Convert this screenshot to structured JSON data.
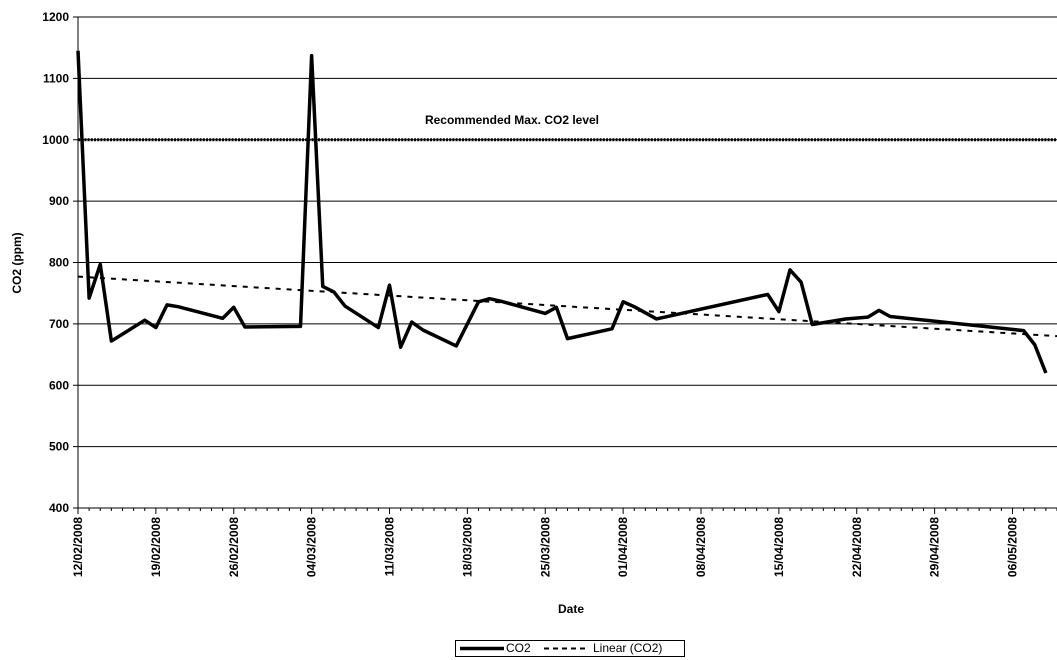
{
  "chart_data": {
    "type": "line",
    "title": "",
    "xlabel": "Date",
    "ylabel": "CO2 (ppm)",
    "ylim": [
      400,
      1200
    ],
    "yticks": [
      400,
      500,
      600,
      700,
      800,
      900,
      1000,
      1100,
      1200
    ],
    "xlim": [
      "2008-02-12",
      "2008-05-10"
    ],
    "x_tick_labels": [
      "12/02/2008",
      "19/02/2008",
      "26/02/2008",
      "04/03/2008",
      "11/03/2008",
      "18/03/2008",
      "25/03/2008",
      "01/04/2008",
      "08/04/2008",
      "15/04/2008",
      "22/04/2008",
      "29/04/2008",
      "06/05/2008"
    ],
    "grid": "horizontal",
    "legend_position": "bottom",
    "series": [
      {
        "name": "CO2",
        "style": "solid",
        "color": "#000000",
        "points": [
          [
            "2008-02-12",
            1145
          ],
          [
            "2008-02-13",
            742
          ],
          [
            "2008-02-14",
            797
          ],
          [
            "2008-02-15",
            672
          ],
          [
            "2008-02-18",
            706
          ],
          [
            "2008-02-19",
            694
          ],
          [
            "2008-02-20",
            731
          ],
          [
            "2008-02-21",
            728
          ],
          [
            "2008-02-25",
            709
          ],
          [
            "2008-02-26",
            727
          ],
          [
            "2008-02-27",
            695
          ],
          [
            "2008-03-03",
            696
          ],
          [
            "2008-03-04",
            1137
          ],
          [
            "2008-03-05",
            761
          ],
          [
            "2008-03-06",
            752
          ],
          [
            "2008-03-07",
            729
          ],
          [
            "2008-03-10",
            694
          ],
          [
            "2008-03-11",
            763
          ],
          [
            "2008-03-12",
            662
          ],
          [
            "2008-03-13",
            703
          ],
          [
            "2008-03-14",
            690
          ],
          [
            "2008-03-17",
            664
          ],
          [
            "2008-03-19",
            736
          ],
          [
            "2008-03-20",
            741
          ],
          [
            "2008-03-21",
            737
          ],
          [
            "2008-03-25",
            717
          ],
          [
            "2008-03-26",
            727
          ],
          [
            "2008-03-27",
            676
          ],
          [
            "2008-03-31",
            692
          ],
          [
            "2008-04-01",
            736
          ],
          [
            "2008-04-02",
            728
          ],
          [
            "2008-04-04",
            708
          ],
          [
            "2008-04-14",
            748
          ],
          [
            "2008-04-15",
            720
          ],
          [
            "2008-04-16",
            788
          ],
          [
            "2008-04-17",
            768
          ],
          [
            "2008-04-18",
            699
          ],
          [
            "2008-04-21",
            708
          ],
          [
            "2008-04-23",
            711
          ],
          [
            "2008-04-24",
            722
          ],
          [
            "2008-04-25",
            712
          ],
          [
            "2008-05-07",
            689
          ],
          [
            "2008-05-08",
            666
          ],
          [
            "2008-05-09",
            620
          ]
        ]
      },
      {
        "name": "Linear (CO2)",
        "style": "dashed",
        "color": "#000000",
        "points": [
          [
            "2008-02-12",
            777
          ],
          [
            "2008-05-10",
            680
          ]
        ]
      }
    ],
    "reference_line": {
      "value": 1000,
      "label": "Recommended Max. CO2 level",
      "style": "dotted"
    }
  },
  "legend": {
    "items": [
      "CO2",
      "Linear (CO2)"
    ]
  }
}
